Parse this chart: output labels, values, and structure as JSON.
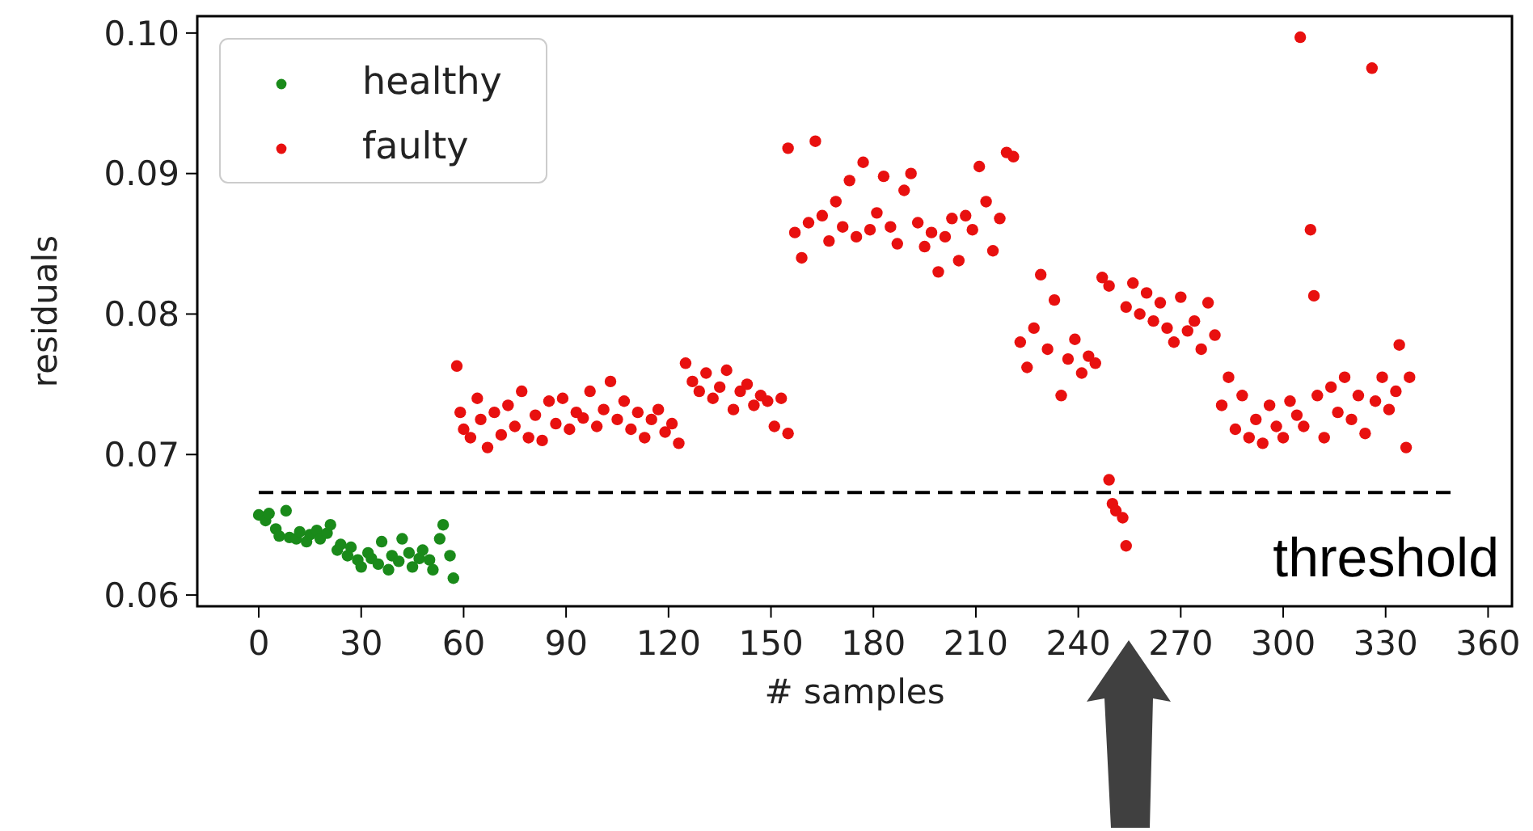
{
  "chart_data": {
    "type": "scatter",
    "xlabel": "# samples",
    "ylabel": "residuals",
    "xlim": [
      -18,
      367
    ],
    "xticks": [
      0,
      30,
      60,
      90,
      120,
      150,
      180,
      210,
      240,
      270,
      300,
      330,
      360
    ],
    "ylim": [
      0.0592,
      0.1012
    ],
    "yticks": [
      {
        "value": 0.06,
        "label": "0.06"
      },
      {
        "value": 0.07,
        "label": "0.07"
      },
      {
        "value": 0.08,
        "label": "0.08"
      },
      {
        "value": 0.09,
        "label": "0.09"
      },
      {
        "value": 0.1,
        "label": "0.10"
      }
    ],
    "grid": false,
    "legend": "top left",
    "marker": "circle",
    "ref_lines": [
      {
        "axis": "y",
        "value": 0.0673,
        "label": "threshold",
        "color": "#000000",
        "line_style": "dashed"
      }
    ],
    "series": [
      {
        "name": "healthy",
        "color": "#1a8a1a",
        "x": [
          0,
          2,
          3,
          5,
          6,
          8,
          9,
          11,
          12,
          14,
          15,
          17,
          18,
          20,
          21,
          23,
          24,
          26,
          27,
          29,
          30,
          32,
          33,
          35,
          36,
          38,
          39,
          41,
          42,
          44,
          45,
          47,
          48,
          50,
          51,
          53,
          54,
          56,
          57
        ],
        "values": [
          0.0657,
          0.0653,
          0.0658,
          0.0647,
          0.0642,
          0.066,
          0.0641,
          0.064,
          0.0645,
          0.0638,
          0.0643,
          0.0646,
          0.064,
          0.0644,
          0.065,
          0.0632,
          0.0636,
          0.0628,
          0.0634,
          0.0625,
          0.062,
          0.063,
          0.0626,
          0.0622,
          0.0638,
          0.0618,
          0.0628,
          0.0624,
          0.064,
          0.063,
          0.062,
          0.0626,
          0.0632,
          0.0625,
          0.0618,
          0.064,
          0.065,
          0.0628,
          0.0612
        ]
      },
      {
        "name": "faulty",
        "color": "#e8100f",
        "x": [
          58,
          59,
          60,
          62,
          64,
          65,
          67,
          69,
          71,
          73,
          75,
          77,
          79,
          81,
          83,
          85,
          87,
          89,
          91,
          93,
          95,
          97,
          99,
          101,
          103,
          105,
          107,
          109,
          111,
          113,
          115,
          117,
          119,
          121,
          123,
          125,
          127,
          129,
          131,
          133,
          135,
          137,
          139,
          141,
          143,
          145,
          147,
          149,
          151,
          153,
          155,
          155,
          157,
          159,
          161,
          163,
          165,
          167,
          169,
          171,
          173,
          175,
          177,
          179,
          181,
          183,
          185,
          187,
          189,
          191,
          193,
          195,
          197,
          199,
          201,
          203,
          205,
          207,
          209,
          211,
          213,
          215,
          217,
          219,
          221,
          223,
          225,
          227,
          229,
          231,
          233,
          235,
          237,
          239,
          241,
          243,
          245,
          247,
          249,
          249,
          250,
          251,
          253,
          254,
          254,
          256,
          258,
          260,
          262,
          264,
          266,
          268,
          270,
          272,
          274,
          276,
          278,
          280,
          282,
          284,
          286,
          288,
          290,
          292,
          294,
          296,
          298,
          300,
          302,
          304,
          305,
          306,
          308,
          309,
          310,
          312,
          314,
          316,
          318,
          320,
          322,
          324,
          326,
          327,
          329,
          331,
          333,
          334,
          336,
          337
        ],
        "values": [
          0.0763,
          0.073,
          0.0718,
          0.0712,
          0.074,
          0.0725,
          0.0705,
          0.073,
          0.0714,
          0.0735,
          0.072,
          0.0745,
          0.0712,
          0.0728,
          0.071,
          0.0738,
          0.0722,
          0.074,
          0.0718,
          0.073,
          0.0726,
          0.0745,
          0.072,
          0.0732,
          0.0752,
          0.0725,
          0.0738,
          0.0718,
          0.073,
          0.0712,
          0.0725,
          0.0732,
          0.0716,
          0.0722,
          0.0708,
          0.0765,
          0.0752,
          0.0745,
          0.0758,
          0.074,
          0.0748,
          0.076,
          0.0732,
          0.0745,
          0.075,
          0.0735,
          0.0742,
          0.0738,
          0.072,
          0.074,
          0.0715,
          0.0918,
          0.0858,
          0.084,
          0.0865,
          0.0923,
          0.087,
          0.0852,
          0.088,
          0.0862,
          0.0895,
          0.0855,
          0.0908,
          0.086,
          0.0872,
          0.0898,
          0.0862,
          0.085,
          0.0888,
          0.09,
          0.0865,
          0.0848,
          0.0858,
          0.083,
          0.0855,
          0.0868,
          0.0838,
          0.087,
          0.086,
          0.0905,
          0.088,
          0.0845,
          0.0868,
          0.0915,
          0.0912,
          0.078,
          0.0762,
          0.079,
          0.0828,
          0.0775,
          0.081,
          0.0742,
          0.0768,
          0.0782,
          0.0758,
          0.077,
          0.0765,
          0.0826,
          0.082,
          0.0682,
          0.0665,
          0.066,
          0.0655,
          0.0635,
          0.0805,
          0.0822,
          0.08,
          0.0815,
          0.0795,
          0.0808,
          0.079,
          0.078,
          0.0812,
          0.0788,
          0.0795,
          0.0775,
          0.0808,
          0.0785,
          0.0735,
          0.0755,
          0.0718,
          0.0742,
          0.0712,
          0.0725,
          0.0708,
          0.0735,
          0.072,
          0.0712,
          0.0738,
          0.0728,
          0.0997,
          0.072,
          0.086,
          0.0813,
          0.0742,
          0.0712,
          0.0748,
          0.073,
          0.0755,
          0.0725,
          0.0742,
          0.0715,
          0.0975,
          0.0738,
          0.0755,
          0.0732,
          0.0745,
          0.0778,
          0.0705,
          0.0755
        ]
      }
    ]
  }
}
